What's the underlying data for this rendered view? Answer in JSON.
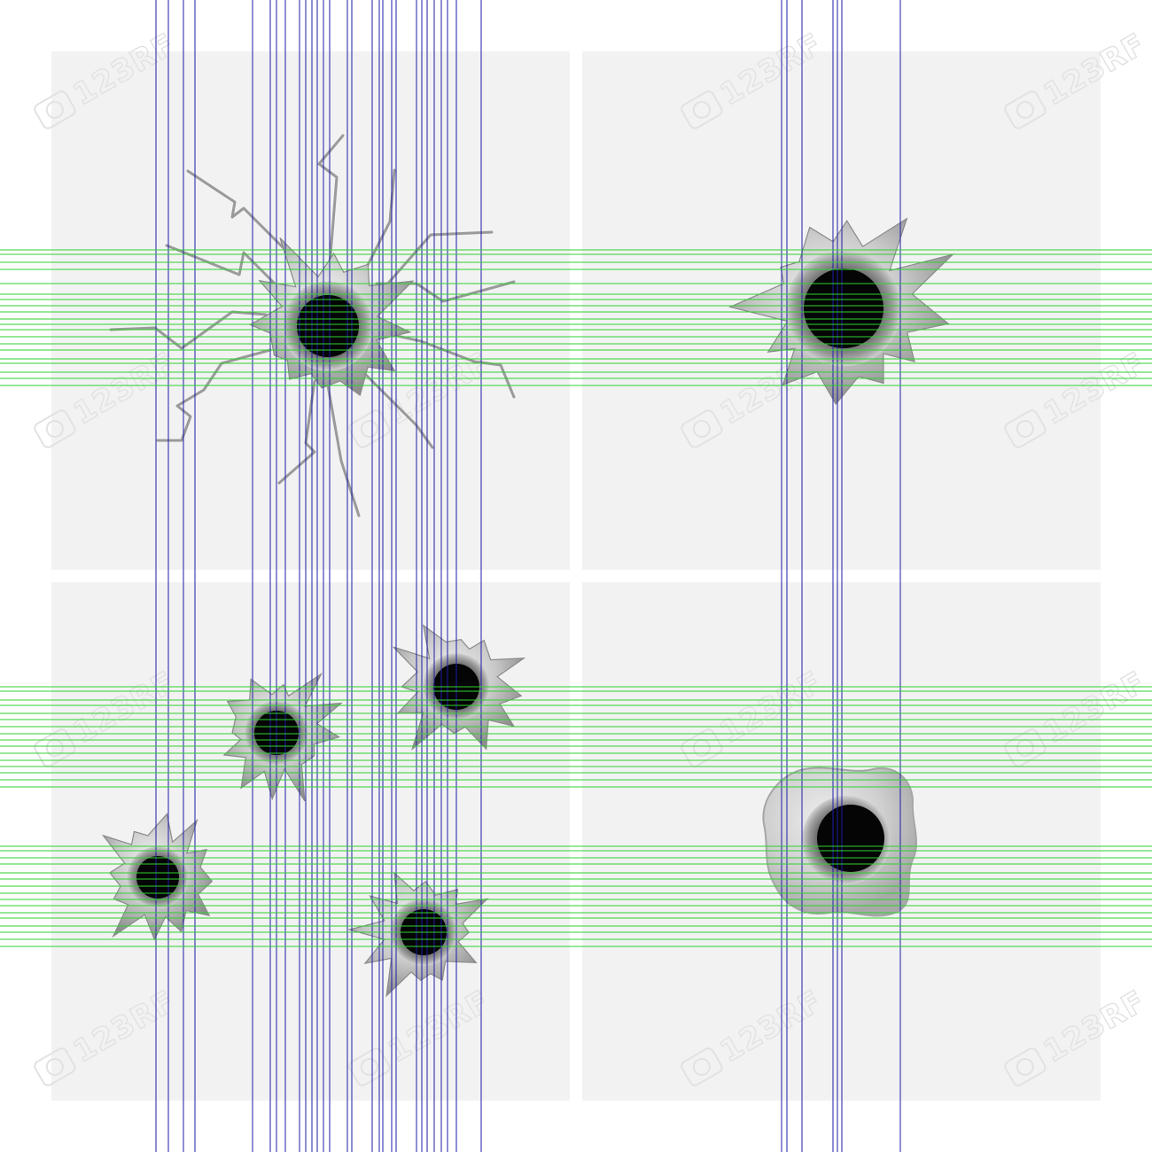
{
  "image": {
    "subject": "bullet-holes",
    "watermark_text": "123RF",
    "colors": {
      "background": "#ffffff",
      "panel": "#f2f2f2",
      "hole": "#050505",
      "metal_light": "#d6d6d6",
      "metal_dark": "#7e7e7e",
      "crack": "#9a9a9a",
      "guide_vertical": "#1c1ca8",
      "guide_horizontal": "#2fd12f",
      "watermark": "#e2e2e2"
    }
  }
}
